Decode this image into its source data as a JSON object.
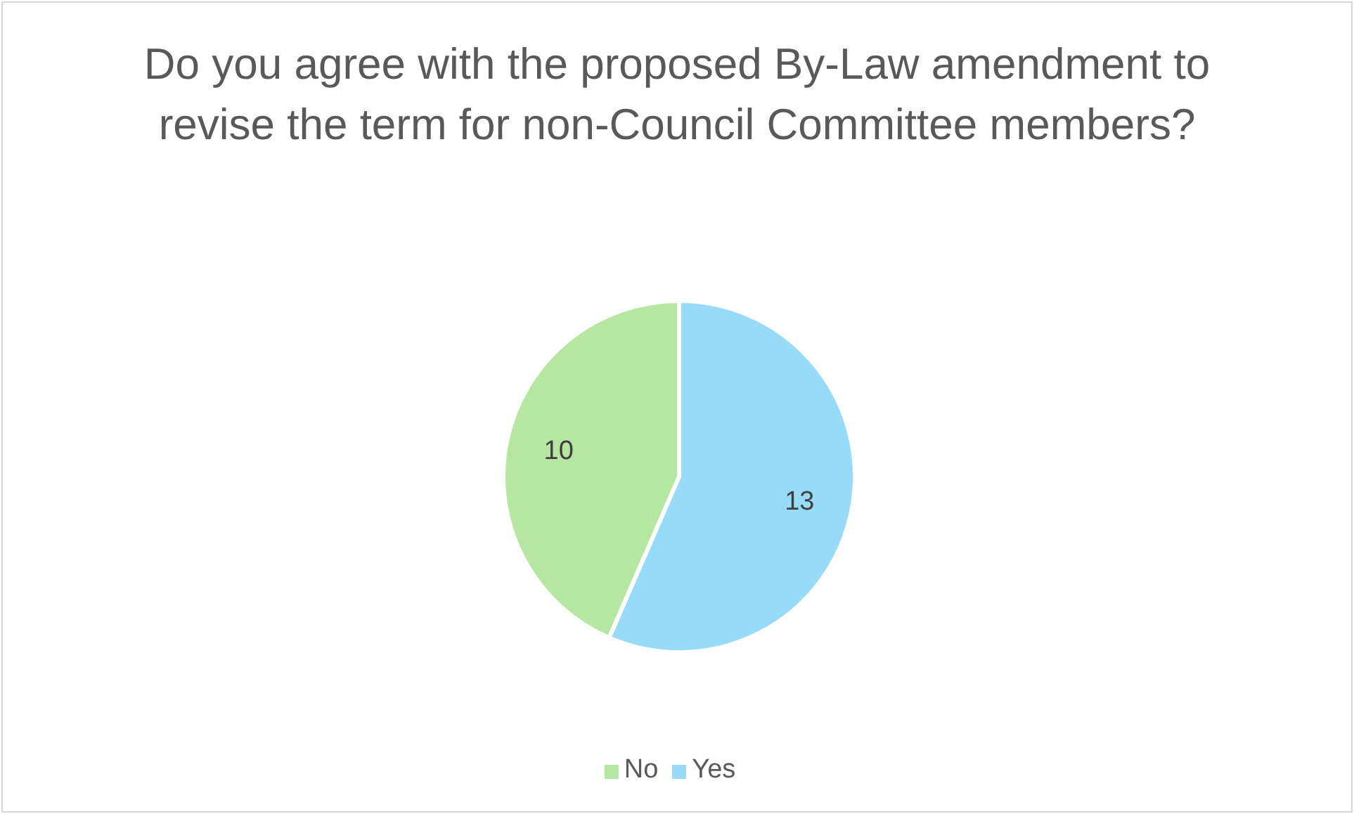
{
  "chart_data": {
    "type": "pie",
    "title": "Do you agree with the proposed By-Law amendment to revise the term for non-Council Committee members?",
    "categories": [
      "Yes",
      "No"
    ],
    "values": [
      13,
      10
    ],
    "colors": [
      "#97dbf8",
      "#b5e6a2"
    ],
    "data_labels": true,
    "legend": "bottom"
  }
}
